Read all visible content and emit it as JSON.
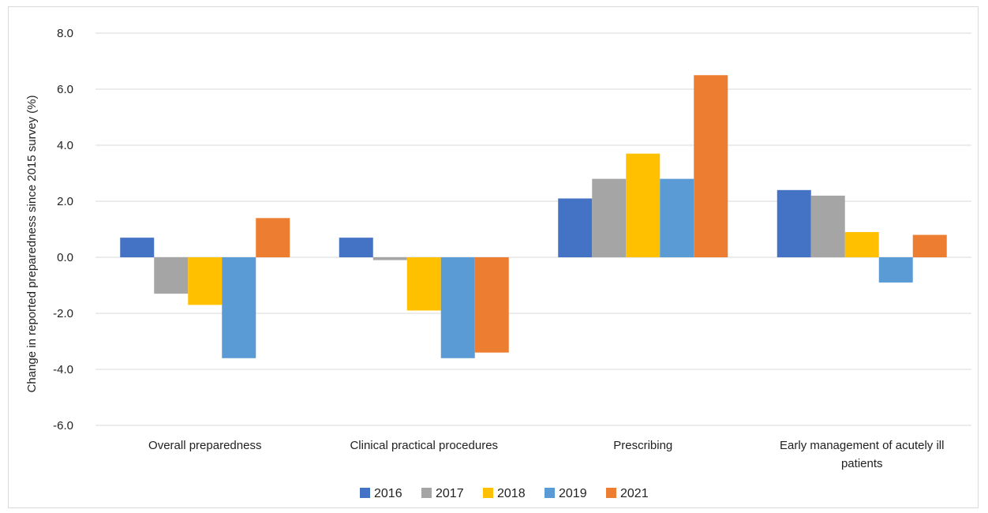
{
  "chart_data": {
    "type": "bar",
    "title": "",
    "ylabel": "Change in reported preparedness since 2015 survey  (%)",
    "xlabel": "",
    "ylim": [
      -6.0,
      8.0
    ],
    "yticks": [
      "8.0",
      "6.0",
      "4.0",
      "2.0",
      "0.0",
      "-2.0",
      "-4.0",
      "-6.0"
    ],
    "ytick_values": [
      8,
      6,
      4,
      2,
      0,
      -2,
      -4,
      -6
    ],
    "grid": true,
    "legend_position": "bottom",
    "categories": [
      [
        "Overall preparedness"
      ],
      [
        "Clinical practical procedures"
      ],
      [
        "Prescribing"
      ],
      [
        "Early management of acutely ill",
        "patients"
      ]
    ],
    "series": [
      {
        "name": "2016",
        "color": "#4472C4",
        "values": [
          0.7,
          0.7,
          2.1,
          2.4
        ]
      },
      {
        "name": "2017",
        "color": "#A5A5A5",
        "values": [
          -1.3,
          -0.1,
          2.8,
          2.2
        ]
      },
      {
        "name": "2018",
        "color": "#FFC000",
        "values": [
          -1.7,
          -1.9,
          3.7,
          0.9
        ]
      },
      {
        "name": "2019",
        "color": "#5B9BD5",
        "values": [
          -3.6,
          -3.6,
          2.8,
          -0.9
        ]
      },
      {
        "name": "2021",
        "color": "#ED7D31",
        "values": [
          1.4,
          -3.4,
          6.5,
          0.8
        ]
      }
    ]
  }
}
